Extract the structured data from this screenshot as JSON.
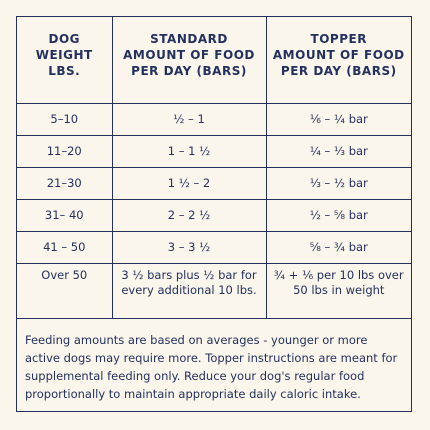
{
  "table": {
    "header": [
      [
        "DOG",
        "WEIGHT",
        "LBS."
      ],
      [
        "STANDARD",
        "AMOUNT OF FOOD",
        "PER DAY (BARS)"
      ],
      [
        "TOPPER",
        "AMOUNT OF FOOD",
        "PER DAY (BARS)"
      ]
    ],
    "rows": [
      [
        "5–10",
        "½ – 1",
        "⅙ – ¼ bar"
      ],
      [
        "11–20",
        "1 – 1 ½",
        "¼ – ⅓ bar"
      ],
      [
        "21–30",
        "1 ½ – 2",
        "⅓ – ½ bar"
      ],
      [
        "31– 40",
        "2 – 2 ½",
        "½ – ⅝ bar"
      ],
      [
        "41 – 50",
        "3 – 3 ½",
        "⅝ – ¾ bar"
      ],
      [
        "Over 50",
        "3 ½ bars plus ½ bar for every additional 10 lbs.",
        "¾ + ⅙ per 10 lbs over 50 lbs in weight"
      ]
    ]
  },
  "note": "Feeding amounts are based on averages - younger or more active dogs may require more. Topper instructions are meant for supplemental feeding only. Reduce your dog's regular food proportionally to maintain appropriate daily caloric intake."
}
